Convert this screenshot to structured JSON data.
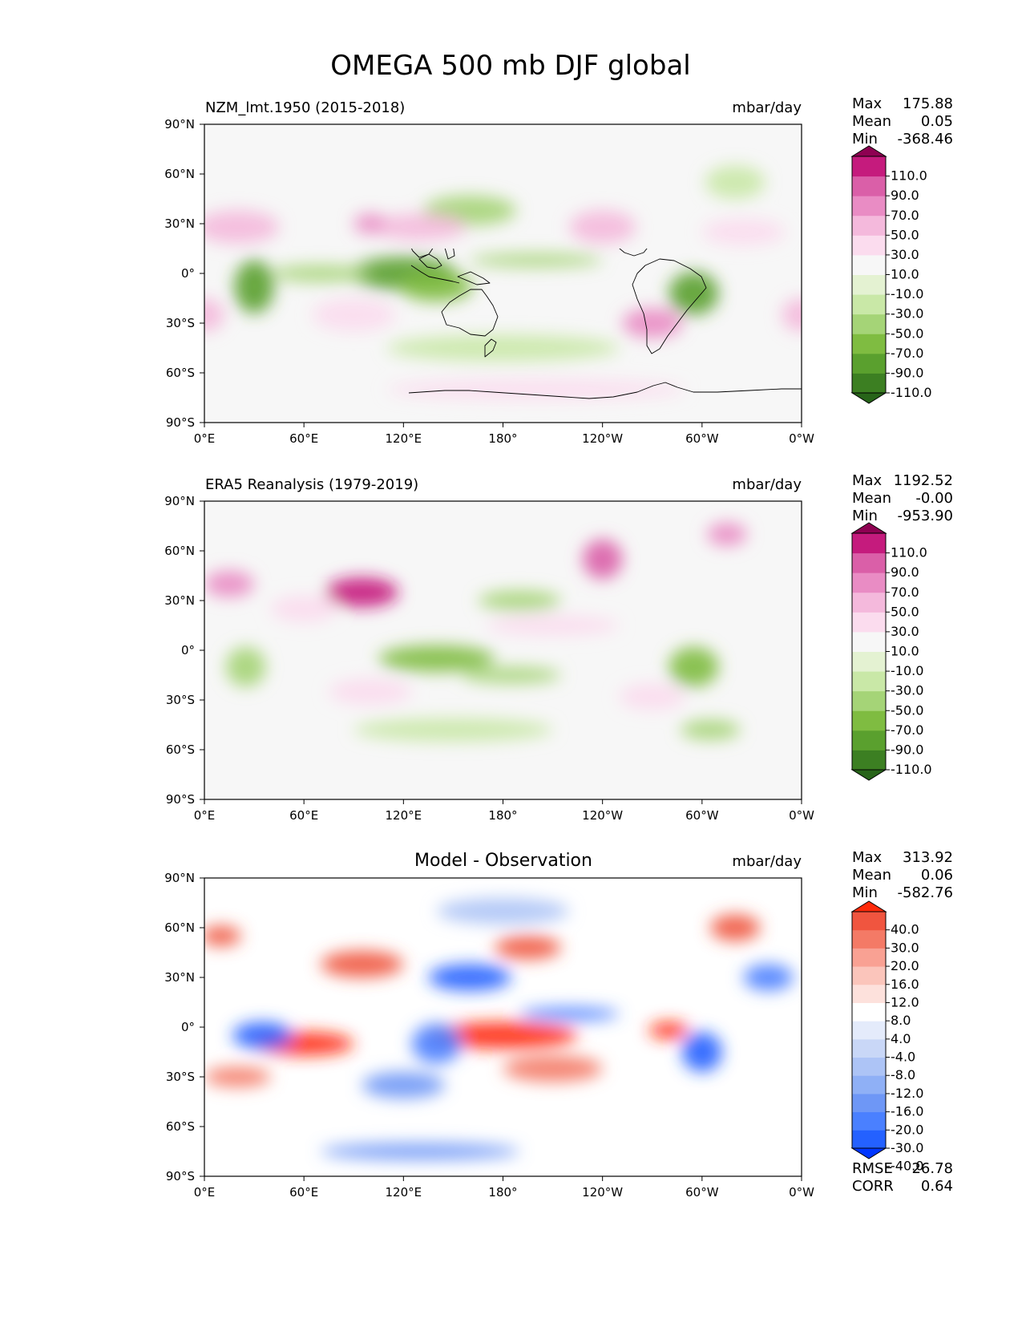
{
  "figure": {
    "title": "OMEGA 500 mb DJF global"
  },
  "colors": {
    "land_outline": "#000000",
    "frame": "#000000",
    "omega_levels": [
      "#276419",
      "#3c7f22",
      "#5aa02e",
      "#7fbc41",
      "#a5d477",
      "#c9e8a7",
      "#e4f2d2",
      "#f7f7f7",
      "#fbdcee",
      "#f4b9dc",
      "#e98cc4",
      "#da5fa8",
      "#c51b7d",
      "#8e0152"
    ],
    "diff_levels": [
      "#0036ff",
      "#2461ff",
      "#4a80ff",
      "#6e97f6",
      "#8fb0f6",
      "#adc4f6",
      "#c9d7f7",
      "#e4ebfb",
      "#ffffff",
      "#fde1dc",
      "#fbc5bb",
      "#f9a193",
      "#f47a66",
      "#f0553f",
      "#ff2a0a"
    ]
  },
  "panels": [
    {
      "title": "NZM_lmt.1950 (2015-2018)",
      "units": "mbar/day",
      "stats": {
        "max_label": "Max",
        "max": "175.88",
        "mean_label": "Mean",
        "mean": "0.05",
        "min_label": "Min",
        "min": "-368.46"
      },
      "colorbar_labels": [
        "110.0",
        "90.0",
        "70.0",
        "50.0",
        "30.0",
        "10.0",
        "-10.0",
        "-30.0",
        "-50.0",
        "-70.0",
        "-90.0",
        "-110.0"
      ]
    },
    {
      "title": "ERA5 Reanalysis (1979-2019)",
      "units": "mbar/day",
      "stats": {
        "max_label": "Max",
        "max": "1192.52",
        "mean_label": "Mean",
        "mean": "-0.00",
        "min_label": "Min",
        "min": "-953.90"
      },
      "colorbar_labels": [
        "110.0",
        "90.0",
        "70.0",
        "50.0",
        "30.0",
        "10.0",
        "-10.0",
        "-30.0",
        "-50.0",
        "-70.0",
        "-90.0",
        "-110.0"
      ]
    },
    {
      "title": "Model - Observation",
      "units": "mbar/day",
      "stats": {
        "max_label": "Max",
        "max": "313.92",
        "mean_label": "Mean",
        "mean": "0.06",
        "min_label": "Min",
        "min": "-582.76"
      },
      "colorbar_labels": [
        "40.0",
        "30.0",
        "20.0",
        "16.0",
        "12.0",
        "8.0",
        "4.0",
        "-4.0",
        "-8.0",
        "-12.0",
        "-16.0",
        "-20.0",
        "-30.0",
        "-40.0"
      ],
      "metrics": {
        "rmse_label": "RMSE",
        "rmse": "26.78",
        "corr_label": "CORR",
        "corr": "0.64"
      }
    }
  ],
  "axes": {
    "lon_ticks": [
      "0°E",
      "60°E",
      "120°E",
      "180°",
      "120°W",
      "60°W",
      "0°W"
    ],
    "lat_ticks": [
      "90°N",
      "60°N",
      "30°N",
      "0°",
      "30°S",
      "60°S",
      "90°S"
    ]
  },
  "chart_data": [
    {
      "type": "heatmap",
      "title": "NZM_lmt.1950 (2015-2018)",
      "units": "mbar/day",
      "xlim": [
        0,
        360
      ],
      "ylim": [
        -90,
        90
      ],
      "levels": [
        -110,
        -90,
        -70,
        -50,
        -30,
        -10,
        10,
        30,
        50,
        70,
        90,
        110
      ],
      "stats": {
        "max": 175.88,
        "mean": 0.05,
        "min": -368.46
      },
      "features": [
        {
          "lon": 30,
          "lat": -8,
          "value": -90,
          "rx": 12,
          "ry": 16
        },
        {
          "lon": 120,
          "lat": 0,
          "value": -80,
          "rx": 32,
          "ry": 10
        },
        {
          "lon": 140,
          "lat": -8,
          "value": -60,
          "rx": 22,
          "ry": 9
        },
        {
          "lon": 70,
          "lat": 0,
          "value": -50,
          "rx": 30,
          "ry": 5
        },
        {
          "lon": 295,
          "lat": -12,
          "value": -90,
          "rx": 15,
          "ry": 13
        },
        {
          "lon": 160,
          "lat": 38,
          "value": -40,
          "rx": 28,
          "ry": 9
        },
        {
          "lon": 200,
          "lat": 8,
          "value": -40,
          "rx": 40,
          "ry": 4
        },
        {
          "lon": 320,
          "lat": 55,
          "value": -30,
          "rx": 18,
          "ry": 10
        },
        {
          "lon": 180,
          "lat": -45,
          "value": -20,
          "rx": 70,
          "ry": 8
        },
        {
          "lon": 20,
          "lat": 28,
          "value": 50,
          "rx": 25,
          "ry": 10
        },
        {
          "lon": 130,
          "lat": 28,
          "value": 60,
          "rx": 28,
          "ry": 8
        },
        {
          "lon": 100,
          "lat": 30,
          "value": 80,
          "rx": 10,
          "ry": 6
        },
        {
          "lon": 240,
          "lat": 28,
          "value": 60,
          "rx": 20,
          "ry": 10
        },
        {
          "lon": 270,
          "lat": -30,
          "value": 70,
          "rx": 18,
          "ry": 9
        },
        {
          "lon": 0,
          "lat": -25,
          "value": 50,
          "rx": 12,
          "ry": 10
        },
        {
          "lon": 360,
          "lat": -25,
          "value": 50,
          "rx": 12,
          "ry": 10
        },
        {
          "lon": 90,
          "lat": -25,
          "value": 40,
          "rx": 25,
          "ry": 10
        },
        {
          "lon": 325,
          "lat": 25,
          "value": 40,
          "rx": 25,
          "ry": 8
        },
        {
          "lon": 200,
          "lat": -70,
          "value": 30,
          "rx": 90,
          "ry": 6
        }
      ]
    },
    {
      "type": "heatmap",
      "title": "ERA5 Reanalysis (1979-2019)",
      "units": "mbar/day",
      "xlim": [
        0,
        360
      ],
      "ylim": [
        -90,
        90
      ],
      "levels": [
        -110,
        -90,
        -70,
        -50,
        -30,
        -10,
        10,
        30,
        50,
        70,
        90,
        110
      ],
      "stats": {
        "max": 1192.52,
        "mean": -0.0,
        "min": -953.9
      },
      "features": [
        {
          "lon": 95,
          "lat": 35,
          "value": 110,
          "rx": 22,
          "ry": 9
        },
        {
          "lon": 240,
          "lat": 55,
          "value": 90,
          "rx": 12,
          "ry": 12
        },
        {
          "lon": 15,
          "lat": 40,
          "value": 70,
          "rx": 15,
          "ry": 8
        },
        {
          "lon": 315,
          "lat": 70,
          "value": 80,
          "rx": 12,
          "ry": 7
        },
        {
          "lon": 60,
          "lat": 25,
          "value": 40,
          "rx": 20,
          "ry": 8
        },
        {
          "lon": 140,
          "lat": -5,
          "value": -60,
          "rx": 35,
          "ry": 8
        },
        {
          "lon": 185,
          "lat": -15,
          "value": -50,
          "rx": 30,
          "ry": 5
        },
        {
          "lon": 295,
          "lat": -10,
          "value": -70,
          "rx": 15,
          "ry": 12
        },
        {
          "lon": 25,
          "lat": -10,
          "value": -50,
          "rx": 12,
          "ry": 12
        },
        {
          "lon": 190,
          "lat": 30,
          "value": -40,
          "rx": 25,
          "ry": 6
        },
        {
          "lon": 150,
          "lat": -48,
          "value": -30,
          "rx": 60,
          "ry": 7
        },
        {
          "lon": 305,
          "lat": -48,
          "value": -40,
          "rx": 18,
          "ry": 6
        },
        {
          "lon": 100,
          "lat": -25,
          "value": 40,
          "rx": 25,
          "ry": 8
        },
        {
          "lon": 270,
          "lat": -28,
          "value": 40,
          "rx": 20,
          "ry": 8
        },
        {
          "lon": 210,
          "lat": 15,
          "value": 30,
          "rx": 40,
          "ry": 6
        }
      ]
    },
    {
      "type": "heatmap",
      "title": "Model - Observation",
      "units": "mbar/day",
      "xlim": [
        0,
        360
      ],
      "ylim": [
        -90,
        90
      ],
      "levels": [
        -40,
        -30,
        -20,
        -16,
        -12,
        -8,
        -4,
        4,
        8,
        12,
        16,
        20,
        30,
        40
      ],
      "stats": {
        "max": 313.92,
        "mean": 0.06,
        "min": -582.76
      },
      "rmse": 26.78,
      "corr": 0.64,
      "features": [
        {
          "lon": 180,
          "lat": -5,
          "value": 40,
          "rx": 45,
          "ry": 8
        },
        {
          "lon": 60,
          "lat": -10,
          "value": 40,
          "rx": 30,
          "ry": 7
        },
        {
          "lon": 280,
          "lat": -2,
          "value": 40,
          "rx": 12,
          "ry": 5
        },
        {
          "lon": 95,
          "lat": 38,
          "value": 30,
          "rx": 25,
          "ry": 8
        },
        {
          "lon": 195,
          "lat": 48,
          "value": 30,
          "rx": 20,
          "ry": 7
        },
        {
          "lon": 320,
          "lat": 60,
          "value": 30,
          "rx": 15,
          "ry": 8
        },
        {
          "lon": 10,
          "lat": 55,
          "value": 30,
          "rx": 12,
          "ry": 6
        },
        {
          "lon": 20,
          "lat": -30,
          "value": 20,
          "rx": 20,
          "ry": 6
        },
        {
          "lon": 210,
          "lat": -25,
          "value": 20,
          "rx": 30,
          "ry": 8
        },
        {
          "lon": 35,
          "lat": -5,
          "value": -40,
          "rx": 18,
          "ry": 8
        },
        {
          "lon": 160,
          "lat": 30,
          "value": -40,
          "rx": 25,
          "ry": 8
        },
        {
          "lon": 140,
          "lat": -10,
          "value": -30,
          "rx": 15,
          "ry": 12
        },
        {
          "lon": 300,
          "lat": -15,
          "value": -40,
          "rx": 12,
          "ry": 12
        },
        {
          "lon": 220,
          "lat": 8,
          "value": -30,
          "rx": 30,
          "ry": 4
        },
        {
          "lon": 120,
          "lat": -35,
          "value": -20,
          "rx": 25,
          "ry": 8
        },
        {
          "lon": 340,
          "lat": 30,
          "value": -30,
          "rx": 15,
          "ry": 8
        },
        {
          "lon": 180,
          "lat": 70,
          "value": -12,
          "rx": 40,
          "ry": 8
        },
        {
          "lon": 130,
          "lat": -75,
          "value": -20,
          "rx": 60,
          "ry": 5
        }
      ]
    }
  ]
}
